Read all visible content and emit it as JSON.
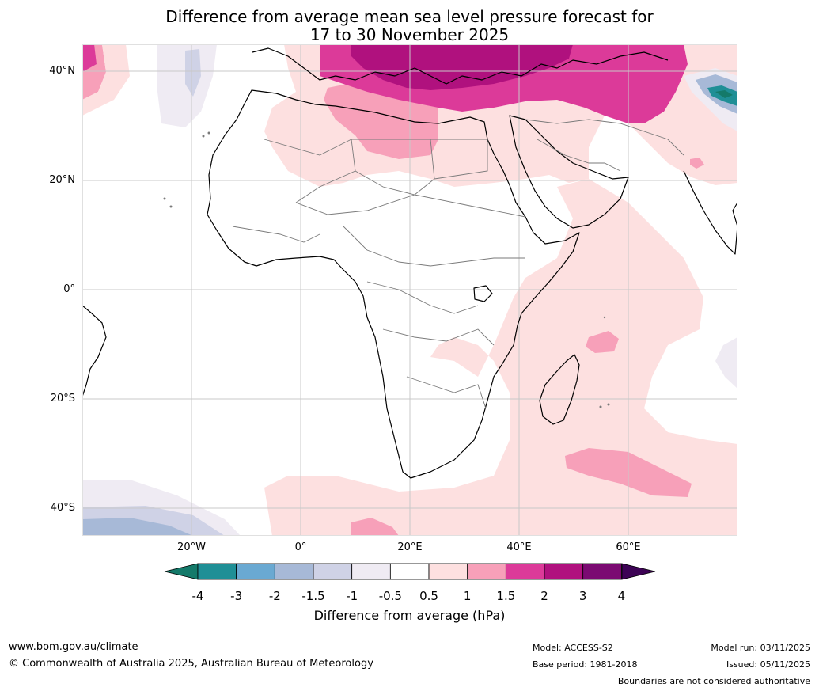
{
  "title_line1": "Difference from average mean sea level pressure forecast for",
  "title_line2": "17 to 30 November 2025",
  "lat_labels": [
    "40°N",
    "20°N",
    "0°",
    "20°S",
    "40°S"
  ],
  "lon_labels": [
    "20°W",
    "0°",
    "20°E",
    "40°E",
    "60°E"
  ],
  "colorbar": {
    "ticks": [
      "-4",
      "-3",
      "-2",
      "-1.5",
      "-1",
      "-0.5",
      "0.5",
      "1",
      "1.5",
      "2",
      "3",
      "4"
    ],
    "colors": [
      "#147a6a",
      "#1f8f96",
      "#6aa9d2",
      "#a7b9d7",
      "#cfd2e6",
      "#efebf3",
      "#ffffff",
      "#fde0e0",
      "#f7a0b9",
      "#dc3a99",
      "#b0117e",
      "#7b0a72",
      "#3d0355"
    ],
    "label": "Difference from average (hPa)"
  },
  "footer": {
    "website": "www.bom.gov.au/climate",
    "copyright": "© Commonwealth of Australia 2025, Australian Bureau of Meteorology",
    "model": "Model: ACCESS-S2",
    "base_period": "Base period: 1981-2018",
    "model_run": "Model run: 03/11/2025",
    "issued": "Issued: 05/11/2025",
    "boundaries": "Boundaries are not considered authoritative"
  }
}
